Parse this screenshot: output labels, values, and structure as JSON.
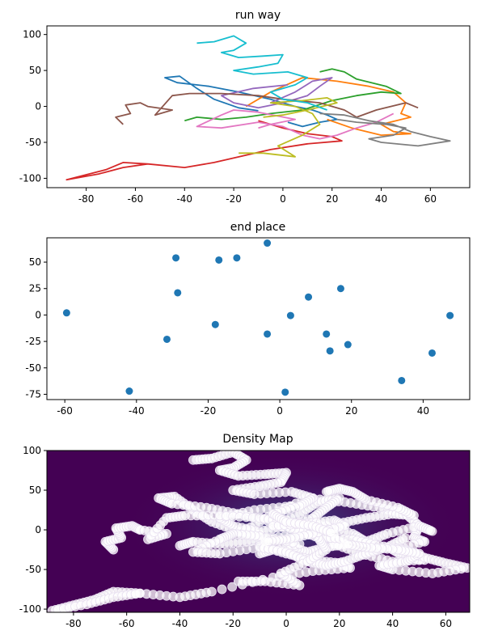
{
  "colors": {
    "tab": [
      "#1f77b4",
      "#ff7f0e",
      "#2ca02c",
      "#d62728",
      "#9467bd",
      "#8c564b",
      "#e377c2",
      "#7f7f7f",
      "#bcbd22",
      "#17becf"
    ],
    "scatter": "#1f77b4",
    "density_bg": "#440154",
    "density_glow": "#3b528b",
    "density_points": "#ffffff"
  },
  "chart_data": [
    {
      "type": "line",
      "title": "run way",
      "xlabel": "",
      "ylabel": "",
      "xlim": [
        -96,
        76
      ],
      "ylim": [
        -113,
        112
      ],
      "xticks": [
        "-80",
        "-60",
        "-40",
        "-20",
        "0",
        "20",
        "40",
        "60"
      ],
      "yticks": [
        "100",
        "50",
        "0",
        "-50",
        "-100"
      ],
      "series": [
        {
          "color_index": 0,
          "points": [
            [
              -10,
              -6
            ],
            [
              -18,
              -2
            ],
            [
              -28,
              10
            ],
            [
              -35,
              25
            ],
            [
              -42,
              42
            ],
            [
              -48,
              40
            ],
            [
              -43,
              33
            ],
            [
              -30,
              28
            ],
            [
              -18,
              20
            ],
            [
              -5,
              10
            ],
            [
              5,
              0
            ],
            [
              12,
              -5
            ],
            [
              18,
              -12
            ],
            [
              22,
              -18
            ],
            [
              15,
              -22
            ],
            [
              8,
              -28
            ],
            [
              2,
              -22
            ]
          ]
        },
        {
          "color_index": 1,
          "points": [
            [
              -15,
              0
            ],
            [
              -5,
              20
            ],
            [
              8,
              40
            ],
            [
              22,
              35
            ],
            [
              35,
              28
            ],
            [
              45,
              20
            ],
            [
              50,
              5
            ],
            [
              48,
              -10
            ],
            [
              52,
              -15
            ],
            [
              40,
              -25
            ],
            [
              45,
              -35
            ],
            [
              52,
              -38
            ],
            [
              40,
              -40
            ],
            [
              28,
              -30
            ],
            [
              18,
              -18
            ]
          ]
        },
        {
          "color_index": 2,
          "points": [
            [
              -40,
              -20
            ],
            [
              -35,
              -15
            ],
            [
              -25,
              -18
            ],
            [
              -15,
              -15
            ],
            [
              -5,
              -10
            ],
            [
              8,
              -5
            ],
            [
              20,
              8
            ],
            [
              30,
              15
            ],
            [
              40,
              20
            ],
            [
              48,
              18
            ],
            [
              42,
              28
            ],
            [
              30,
              38
            ],
            [
              25,
              48
            ],
            [
              20,
              52
            ],
            [
              15,
              48
            ]
          ]
        },
        {
          "color_index": 3,
          "points": [
            [
              -10,
              -20
            ],
            [
              0,
              -30
            ],
            [
              10,
              -38
            ],
            [
              20,
              -42
            ],
            [
              24,
              -48
            ],
            [
              10,
              -52
            ],
            [
              -5,
              -60
            ],
            [
              -28,
              -78
            ],
            [
              -40,
              -85
            ],
            [
              -55,
              -80
            ],
            [
              -65,
              -78
            ],
            [
              -72,
              -88
            ],
            [
              -80,
              -95
            ],
            [
              -88,
              -102
            ],
            [
              -75,
              -94
            ],
            [
              -65,
              -85
            ],
            [
              -55,
              -80
            ]
          ]
        },
        {
          "color_index": 4,
          "points": [
            [
              -5,
              5
            ],
            [
              5,
              20
            ],
            [
              12,
              35
            ],
            [
              20,
              40
            ],
            [
              15,
              28
            ],
            [
              10,
              15
            ],
            [
              0,
              5
            ],
            [
              -10,
              -2
            ],
            [
              -20,
              5
            ],
            [
              -25,
              15
            ],
            [
              -12,
              25
            ],
            [
              2,
              30
            ]
          ]
        },
        {
          "color_index": 5,
          "points": [
            [
              -65,
              -25
            ],
            [
              -68,
              -15
            ],
            [
              -62,
              -10
            ],
            [
              -64,
              2
            ],
            [
              -58,
              5
            ],
            [
              -55,
              0
            ],
            [
              -45,
              -5
            ],
            [
              -52,
              -12
            ],
            [
              -45,
              15
            ],
            [
              -38,
              18
            ],
            [
              -25,
              18
            ],
            [
              -10,
              15
            ],
            [
              0,
              10
            ],
            [
              15,
              5
            ],
            [
              25,
              -5
            ],
            [
              30,
              -15
            ],
            [
              38,
              -5
            ],
            [
              50,
              5
            ],
            [
              55,
              -2
            ]
          ]
        },
        {
          "color_index": 6,
          "points": [
            [
              -10,
              -30
            ],
            [
              -5,
              -25
            ],
            [
              5,
              -18
            ],
            [
              -10,
              -8
            ],
            [
              -20,
              -5
            ],
            [
              -25,
              -12
            ],
            [
              -35,
              -28
            ],
            [
              -25,
              -30
            ],
            [
              -10,
              -22
            ],
            [
              0,
              -28
            ],
            [
              8,
              -40
            ],
            [
              15,
              -45
            ],
            [
              22,
              -40
            ],
            [
              30,
              -30
            ],
            [
              38,
              -22
            ],
            [
              45,
              -10
            ]
          ]
        },
        {
          "color_index": 7,
          "points": [
            [
              15,
              -10
            ],
            [
              25,
              -12
            ],
            [
              35,
              -20
            ],
            [
              45,
              -25
            ],
            [
              52,
              -35
            ],
            [
              60,
              -42
            ],
            [
              68,
              -48
            ],
            [
              55,
              -55
            ],
            [
              40,
              -50
            ],
            [
              35,
              -45
            ],
            [
              45,
              -40
            ],
            [
              50,
              -30
            ],
            [
              42,
              -25
            ],
            [
              30,
              -22
            ],
            [
              22,
              -18
            ]
          ]
        },
        {
          "color_index": 8,
          "points": [
            [
              -18,
              -65
            ],
            [
              -8,
              -65
            ],
            [
              5,
              -70
            ],
            [
              -2,
              -55
            ],
            [
              8,
              -40
            ],
            [
              15,
              -25
            ],
            [
              12,
              -10
            ],
            [
              5,
              0
            ],
            [
              -5,
              5
            ],
            [
              8,
              8
            ],
            [
              18,
              12
            ],
            [
              22,
              5
            ],
            [
              10,
              -5
            ],
            [
              0,
              -12
            ],
            [
              -8,
              -15
            ]
          ]
        },
        {
          "color_index": 9,
          "points": [
            [
              -35,
              88
            ],
            [
              -28,
              90
            ],
            [
              -20,
              98
            ],
            [
              -15,
              88
            ],
            [
              -20,
              78
            ],
            [
              -25,
              75
            ],
            [
              -18,
              68
            ],
            [
              -8,
              70
            ],
            [
              0,
              72
            ],
            [
              -2,
              60
            ],
            [
              -10,
              55
            ],
            [
              -20,
              50
            ],
            [
              -12,
              45
            ],
            [
              2,
              48
            ],
            [
              10,
              40
            ],
            [
              5,
              30
            ],
            [
              -5,
              20
            ],
            [
              0,
              10
            ],
            [
              10,
              5
            ],
            [
              18,
              -5
            ]
          ]
        }
      ]
    },
    {
      "type": "scatter",
      "title": "end place",
      "xlabel": "",
      "ylabel": "",
      "xlim": [
        -65,
        53
      ],
      "ylim": [
        -80,
        73
      ],
      "xticks": [
        "-60",
        "-40",
        "-20",
        "0",
        "20",
        "40"
      ],
      "yticks": [
        "50",
        "25",
        "0",
        "-25",
        "-50",
        "-75"
      ],
      "points": [
        [
          -59.5,
          2
        ],
        [
          -42,
          -72
        ],
        [
          -31.5,
          -23
        ],
        [
          -29,
          54
        ],
        [
          -28.5,
          21
        ],
        [
          -18,
          -9
        ],
        [
          -17,
          52
        ],
        [
          -12,
          54
        ],
        [
          -3.5,
          -18
        ],
        [
          -3.5,
          68
        ],
        [
          1.5,
          -73
        ],
        [
          3,
          -0.5
        ],
        [
          8,
          17
        ],
        [
          13,
          -18
        ],
        [
          14,
          -34
        ],
        [
          17,
          25
        ],
        [
          19,
          -28
        ],
        [
          34,
          -62
        ],
        [
          42.5,
          -36
        ],
        [
          47.5,
          -0.5
        ]
      ]
    },
    {
      "type": "scatter",
      "title": "Density Map",
      "xlabel": "",
      "ylabel": "",
      "xlim": [
        -90,
        69
      ],
      "ylim": [
        -104,
        100
      ],
      "xticks": [
        "-80",
        "-60",
        "-40",
        "-20",
        "0",
        "20",
        "40",
        "60"
      ],
      "yticks": [
        "100",
        "50",
        "0",
        "-50",
        "-100"
      ],
      "note_points_from_series_of_chart": 0
    }
  ]
}
